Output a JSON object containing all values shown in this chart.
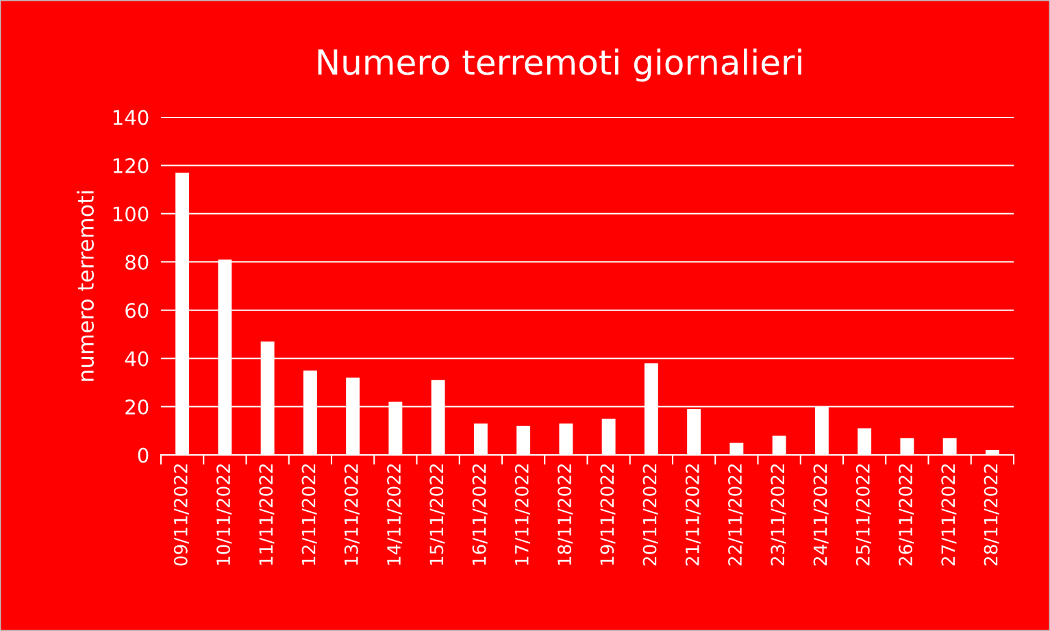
{
  "chart_data": {
    "type": "bar",
    "title": "Numero terremoti giornalieri",
    "ylabel": "numero terremoti",
    "categories": [
      "09/11/2022",
      "10/11/2022",
      "11/11/2022",
      "12/11/2022",
      "13/11/2022",
      "14/11/2022",
      "15/11/2022",
      "16/11/2022",
      "17/11/2022",
      "18/11/2022",
      "19/11/2022",
      "20/11/2022",
      "21/11/2022",
      "22/11/2022",
      "23/11/2022",
      "24/11/2022",
      "25/11/2022",
      "26/11/2022",
      "27/11/2022",
      "28/11/2022"
    ],
    "values": [
      117,
      81,
      47,
      35,
      32,
      22,
      31,
      13,
      12,
      13,
      15,
      38,
      19,
      5,
      8,
      20,
      11,
      7,
      7,
      2
    ],
    "color": "#ffffff",
    "ylim": [
      0,
      140
    ],
    "yticks": [
      0,
      20,
      40,
      60,
      80,
      100,
      120,
      140
    ],
    "grid": "y",
    "legend": false
  }
}
